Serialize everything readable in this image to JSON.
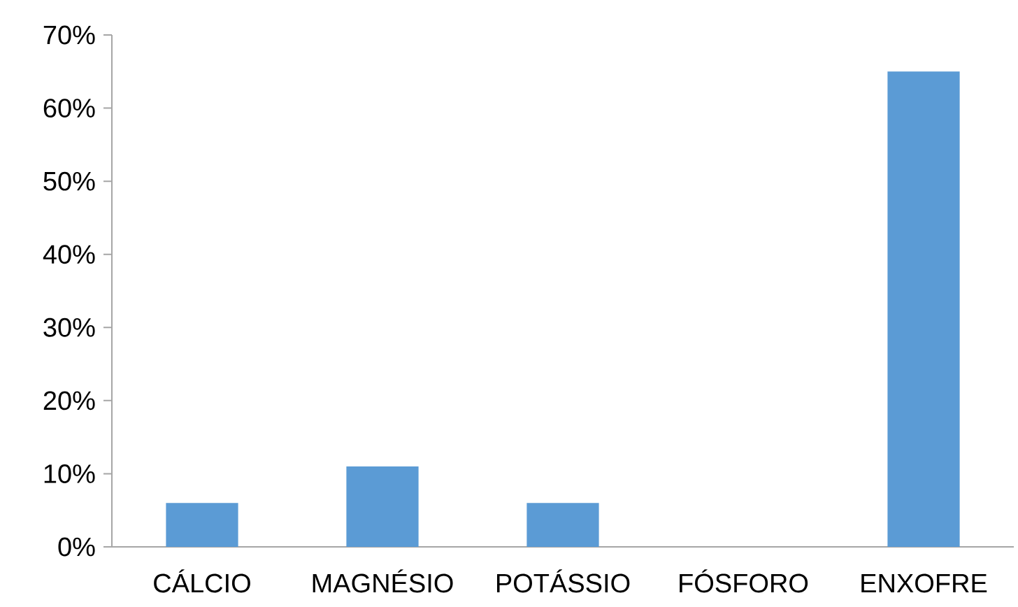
{
  "chart_data": {
    "type": "bar",
    "categories": [
      "CÁLCIO",
      "MAGNÉSIO",
      "POTÁSSIO",
      "FÓSFORO",
      "ENXOFRE"
    ],
    "values": [
      6,
      11,
      6,
      0,
      65
    ],
    "color": "#5b9bd5",
    "ylim": [
      0,
      70
    ],
    "yticks": [
      {
        "value": 0,
        "label": "0%"
      },
      {
        "value": 10,
        "label": "10%"
      },
      {
        "value": 20,
        "label": "20%"
      },
      {
        "value": 30,
        "label": "30%"
      },
      {
        "value": 40,
        "label": "40%"
      },
      {
        "value": 50,
        "label": "50%"
      },
      {
        "value": 60,
        "label": "60%"
      },
      {
        "value": 70,
        "label": "70%"
      }
    ]
  }
}
